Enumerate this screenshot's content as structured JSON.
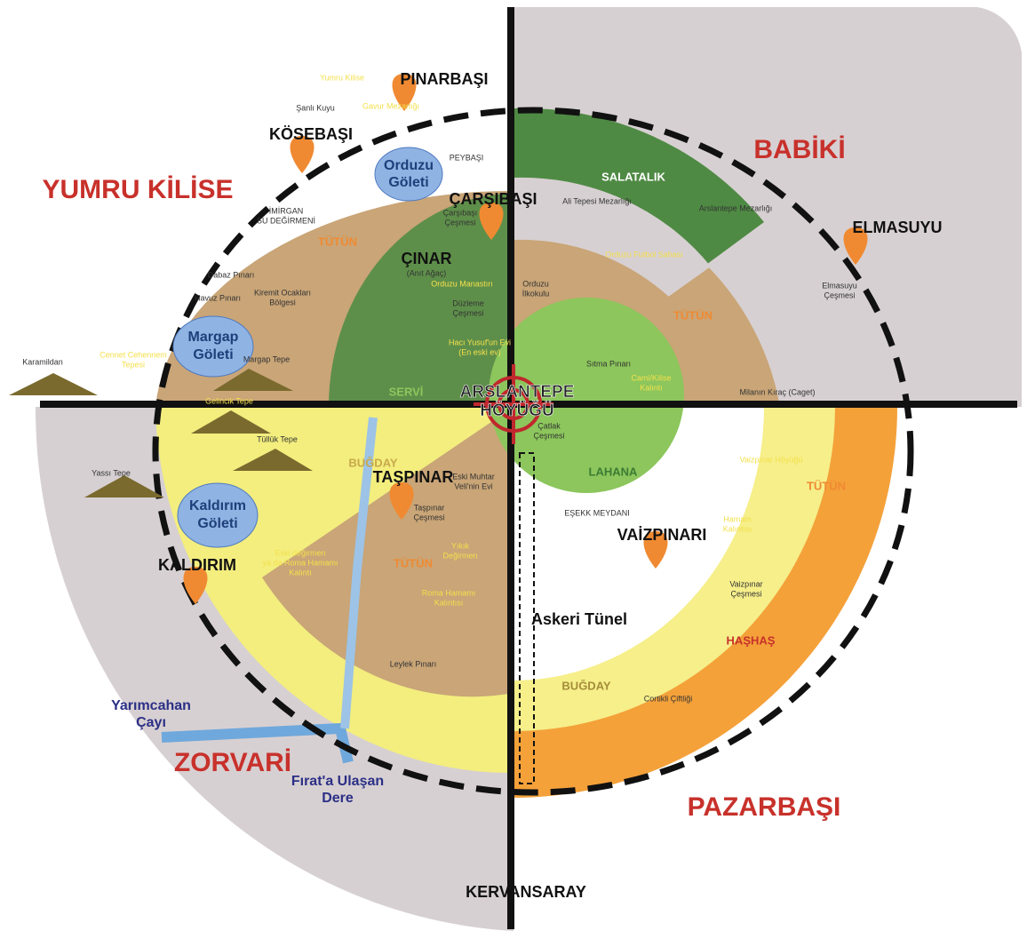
{
  "regions": [
    "YUMRU KİLİSE",
    "BABİKİ",
    "ZORVARİ",
    "PAZARBAŞI"
  ],
  "villages": [
    "PINARBAŞI",
    "KÖSEBAŞI",
    "ÇARŞIBAŞI",
    "ELMASUYU",
    "KALDIRIM",
    "TAŞPINAR",
    "VAİZPINARI",
    "KERVANSARAY"
  ],
  "center": [
    "ARSLANTEPE",
    "HÖYÜĞÜ"
  ],
  "ponds": [
    [
      "Orduzu",
      "Göleti"
    ],
    [
      "Margap",
      "Göleti"
    ],
    [
      "Kaldırım",
      "Göleti"
    ]
  ],
  "zones": [
    "SALATALIK",
    "TÜTÜN",
    "TÜTÜN",
    "TÜTÜN",
    "TÜTÜN",
    "BUĞDAY",
    "BUĞDAY",
    "LAHANA",
    "HAŞHAŞ",
    "SERVİ",
    "ÇINAR",
    "(Anıt Ağaç)"
  ],
  "places": [
    [
      "Yumru Kilise"
    ],
    [
      "Şanlı Kuyu"
    ],
    [
      "Gavur Mezarlığı"
    ],
    [
      "PEYBAŞI"
    ],
    [
      "İMİRGAN",
      "SU DEĞİRMENİ"
    ],
    [
      "Dabaz Pınarı"
    ],
    [
      "Havuz Pınarı"
    ],
    [
      "Kiremit Ocakları",
      "Bölgesi"
    ],
    [
      "Margap Tepe"
    ],
    [
      "Karamildan"
    ],
    [
      "Cennet Cehennem",
      "Tepesi"
    ],
    [
      "Gelincik Tepe"
    ],
    [
      "Tüllük Tepe"
    ],
    [
      "Yassı Tepe"
    ],
    [
      "Çarşıbaşı",
      "Çeşmesi"
    ],
    [
      "Orduzu Manastırı"
    ],
    [
      "Düzleme",
      "Çeşmesi"
    ],
    [
      "Hacı Yusuf'un Evi",
      "(En eski ev)"
    ],
    [
      "Orduzu",
      "İlkokulu"
    ],
    [
      "Sıtma Pınarı"
    ],
    [
      "Ali Tepesi Mezarlığı"
    ],
    [
      "Arslantepe Mezarlığı"
    ],
    [
      "Orduzu Futbol Sahası"
    ],
    [
      "Elmasuyu",
      "Çeşmesi"
    ],
    [
      "Milanın Kıraç (Caget)"
    ],
    [
      "Cami/Kilise",
      "Kalıntı"
    ],
    [
      "Çatlak",
      "Çeşmesi"
    ],
    [
      "Eski Muhtar",
      "Veli'nin Evi"
    ],
    [
      "Taşpınar",
      "Çeşmesi"
    ],
    [
      "Yıkık",
      "Değirmen"
    ],
    [
      "Roma Hamamı",
      "Kalıntısı"
    ],
    [
      "Eski değirmen",
      "ya da Roma Hamamı",
      "Kalıntı"
    ],
    [
      "Leylek Pınarı"
    ],
    [
      "EŞEKK MEYDANI"
    ],
    [
      "Vaizpınar Höyüğü"
    ],
    [
      "Hamam",
      "Kalıntısı"
    ],
    [
      "Vaizpınar",
      "Çeşmesi"
    ],
    [
      "Askeri Tünel"
    ],
    [
      "Cortikli Çiftliği"
    ]
  ],
  "water": [
    [
      "Yarımcahan",
      "Çayı"
    ],
    [
      "Fırat'a Ulaşan",
      "Dere"
    ]
  ]
}
